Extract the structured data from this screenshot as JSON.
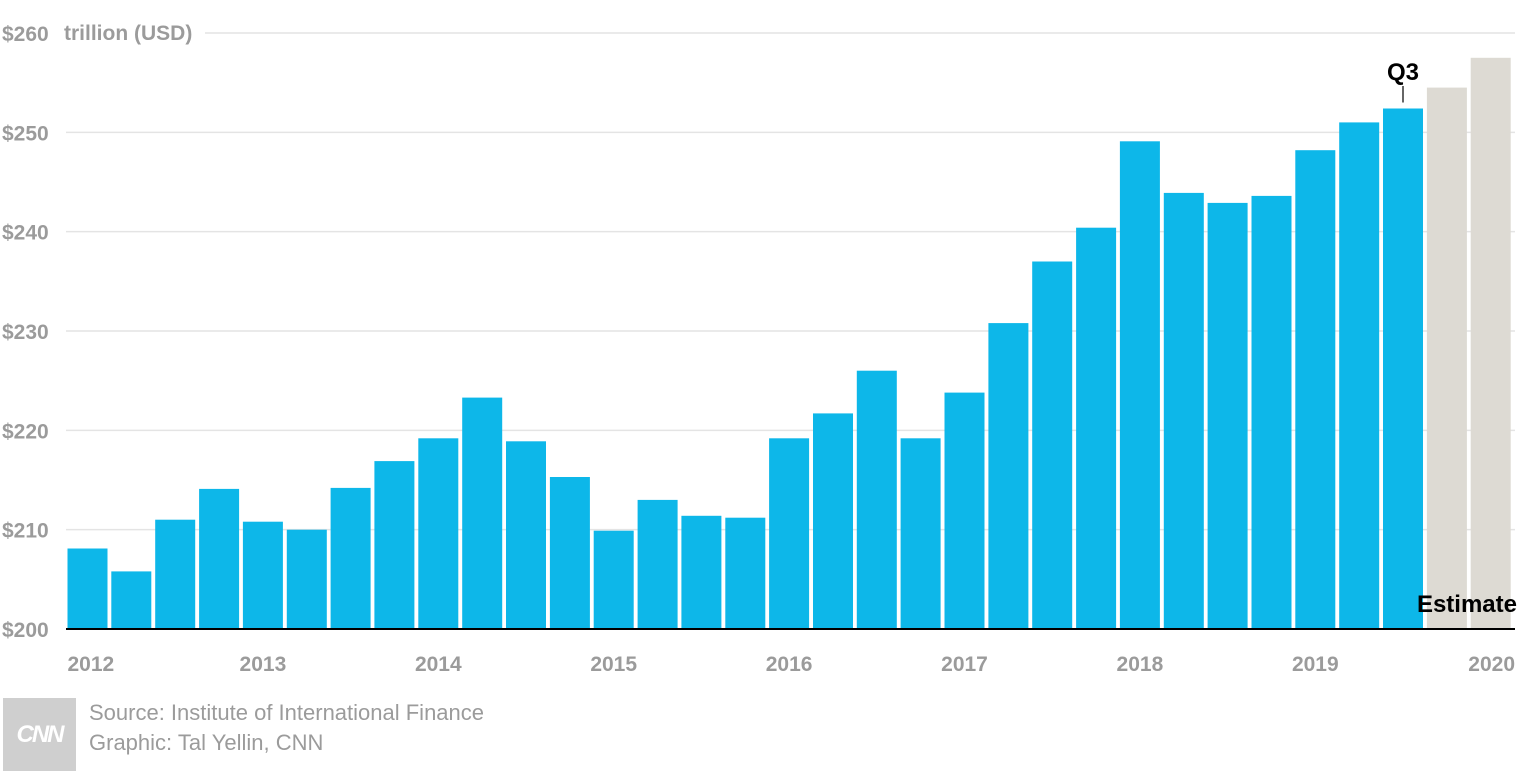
{
  "chart_data": {
    "type": "bar",
    "unit_label": "trillion (USD)",
    "y_tick_labels": [
      "$200",
      "$210",
      "$220",
      "$230",
      "$240",
      "$250",
      "$260"
    ],
    "y_ticks": [
      200,
      210,
      220,
      230,
      240,
      250,
      260
    ],
    "ylim": [
      200,
      260
    ],
    "x_year_labels": [
      "2012",
      "2013",
      "2014",
      "2015",
      "2016",
      "2017",
      "2018",
      "2019",
      "2020"
    ],
    "grid": true,
    "series": [
      {
        "values": [
          208.1,
          205.8,
          211.0,
          214.1,
          210.8,
          210.0,
          214.2,
          216.9,
          219.2,
          223.3,
          218.9,
          215.3,
          209.9,
          213.0,
          211.4,
          211.2,
          219.2,
          221.7,
          226.0,
          219.2,
          223.8,
          230.8,
          237.0,
          240.4,
          249.1,
          243.9,
          242.9,
          243.6,
          248.2,
          251.0,
          252.4
        ],
        "color": "#0db7e9"
      },
      {
        "values": [
          254.5,
          257.5
        ],
        "color": "#dddad3"
      }
    ],
    "annotations": [
      {
        "text": "Q3"
      },
      {
        "text": "Estimate"
      }
    ]
  },
  "footer": {
    "source": "Source: Institute of International Finance",
    "graphic": "Graphic: Tal Yellin, CNN",
    "logo_text": "CNN"
  }
}
